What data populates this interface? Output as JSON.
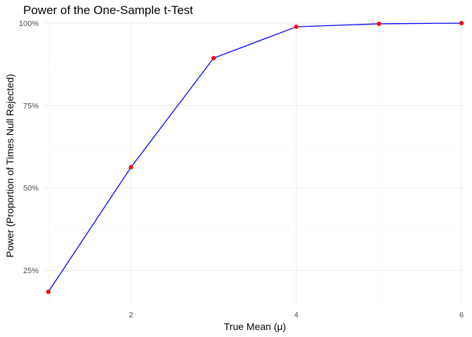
{
  "chart_data": {
    "type": "line",
    "title": "Power of the One-Sample t-Test",
    "xlabel": "True Mean (μ)",
    "ylabel": "Power (Proportion of Times Null Rejected)",
    "x": [
      1,
      2,
      3,
      4,
      5,
      6
    ],
    "series": [
      {
        "values": [
          0.185,
          0.563,
          0.894,
          0.989,
          0.998,
          1.0
        ]
      }
    ],
    "xlim": [
      0.95,
      6.05
    ],
    "ylim": [
      0.148,
      1.0085
    ],
    "x_ticks": [
      2,
      4,
      6
    ],
    "x_tick_labels": [
      "2",
      "4",
      "6"
    ],
    "y_ticks": [
      0.25,
      0.5,
      0.75,
      1.0
    ],
    "y_tick_labels": [
      "25%",
      "50%",
      "75%",
      "100%"
    ],
    "grid": true,
    "line_color": "#0000ff",
    "point_color": "#ff0000",
    "background": "#ffffff"
  }
}
